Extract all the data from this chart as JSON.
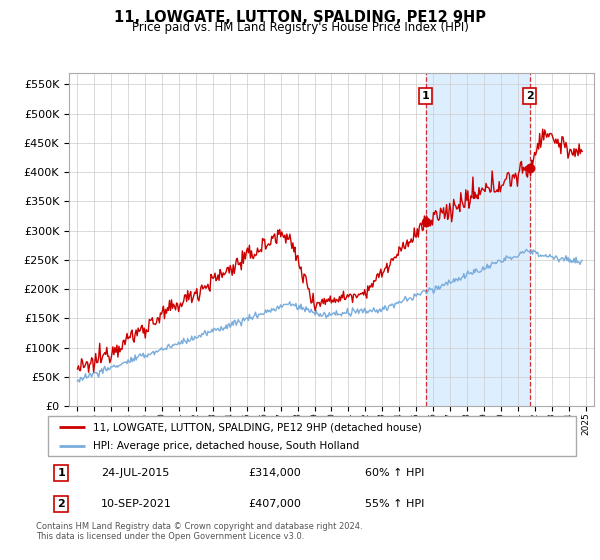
{
  "title": "11, LOWGATE, LUTTON, SPALDING, PE12 9HP",
  "subtitle": "Price paid vs. HM Land Registry's House Price Index (HPI)",
  "legend_line1": "11, LOWGATE, LUTTON, SPALDING, PE12 9HP (detached house)",
  "legend_line2": "HPI: Average price, detached house, South Holland",
  "sale1_date": "24-JUL-2015",
  "sale1_price": "£314,000",
  "sale1_pct": "60% ↑ HPI",
  "sale2_date": "10-SEP-2021",
  "sale2_price": "£407,000",
  "sale2_pct": "55% ↑ HPI",
  "footnote1": "Contains HM Land Registry data © Crown copyright and database right 2024.",
  "footnote2": "This data is licensed under the Open Government Licence v3.0.",
  "red_color": "#cc0000",
  "blue_color": "#7aacdc",
  "highlight_bg": "#ddeeff",
  "sale1_x": 2015.56,
  "sale2_x": 2021.7,
  "ylim_max": 570000,
  "xlim_min": 1994.5,
  "xlim_max": 2025.5
}
